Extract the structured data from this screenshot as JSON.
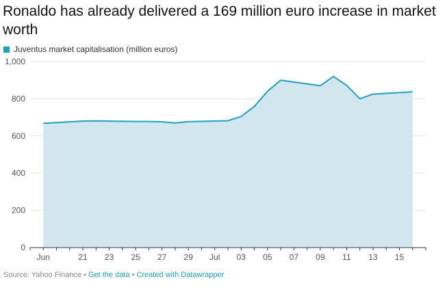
{
  "title": "Ronaldo has already delivered a 169 million euro increase in market worth",
  "footer": {
    "source": "Source: Yahoo Finance",
    "separator": " • ",
    "get_data_label": "Get the data",
    "created_with_label": "Created with Datawrapper"
  },
  "colors": {
    "line": "#1f9fc4",
    "area": "#d1e6ed",
    "link": "#1f9fc4",
    "grid": "#e4e4e4",
    "axis": "#333333"
  },
  "chart_data": {
    "type": "area",
    "title": "Ronaldo has already delivered a 169 million euro increase in market worth",
    "xlabel": "",
    "ylabel": "",
    "legend": "top-left",
    "grid": true,
    "ylim": [
      0,
      1000
    ],
    "yticks": [
      0,
      200,
      400,
      600,
      800,
      1000
    ],
    "ytick_labels": [
      "0",
      "200",
      "400",
      "600",
      "800",
      "1,000"
    ],
    "x_ticks": [
      {
        "label": "Jun",
        "date": "2018-06-18"
      },
      {
        "label": "21",
        "date": "2018-06-21"
      },
      {
        "label": "23",
        "date": "2018-06-23"
      },
      {
        "label": "25",
        "date": "2018-06-25"
      },
      {
        "label": "27",
        "date": "2018-06-27"
      },
      {
        "label": "29",
        "date": "2018-06-29"
      },
      {
        "label": "Jul",
        "date": "2018-07-01"
      },
      {
        "label": "03",
        "date": "2018-07-03"
      },
      {
        "label": "05",
        "date": "2018-07-05"
      },
      {
        "label": "07",
        "date": "2018-07-07"
      },
      {
        "label": "09",
        "date": "2018-07-09"
      },
      {
        "label": "11",
        "date": "2018-07-11"
      },
      {
        "label": "13",
        "date": "2018-07-13"
      },
      {
        "label": "15",
        "date": "2018-07-15"
      }
    ],
    "x_range": [
      "2018-06-17",
      "2018-07-17"
    ],
    "series": [
      {
        "name": "Juventus market capitalisation (million euros)",
        "x": [
          "2018-06-18",
          "2018-06-19",
          "2018-06-20",
          "2018-06-21",
          "2018-06-22",
          "2018-06-25",
          "2018-06-26",
          "2018-06-27",
          "2018-06-28",
          "2018-06-29",
          "2018-07-02",
          "2018-07-03",
          "2018-07-04",
          "2018-07-05",
          "2018-07-06",
          "2018-07-09",
          "2018-07-10",
          "2018-07-11",
          "2018-07-12",
          "2018-07-13",
          "2018-07-16"
        ],
        "values": [
          668,
          672,
          676,
          680,
          681,
          678,
          678,
          676,
          670,
          677,
          682,
          705,
          758,
          840,
          900,
          870,
          920,
          872,
          800,
          825,
          837
        ]
      }
    ]
  }
}
